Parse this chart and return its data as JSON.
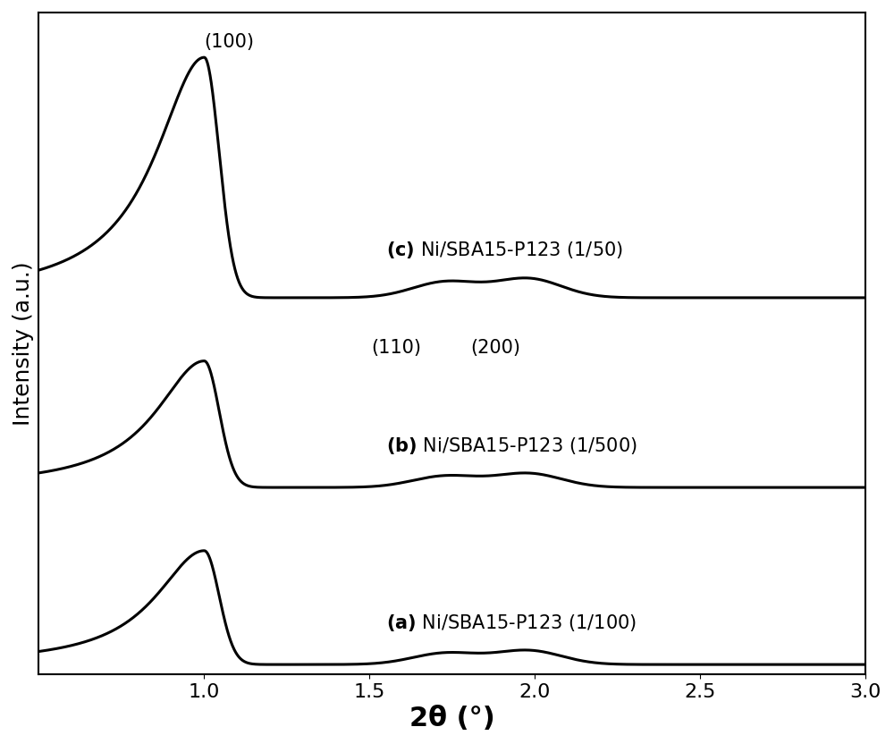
{
  "xlabel": "2θ (°)",
  "ylabel": "Intensity (a.u.)",
  "xlim": [
    0.5,
    3.0
  ],
  "xticks": [
    1.0,
    1.5,
    2.0,
    2.5,
    3.0
  ],
  "background_color": "#ffffff",
  "line_color": "#000000",
  "line_width": 2.2,
  "peak100_label": "(100)",
  "peak110_label": "(110)",
  "peak200_label": "(200)",
  "label_a": "(a) Ni/SBA15-P123 (1/100)",
  "label_b": "(b) Ni/SBA15-P123 (1/500)",
  "label_c": "(c) Ni/SBA15-P123 (1/50)",
  "xlabel_fontsize": 22,
  "ylabel_fontsize": 18,
  "tick_fontsize": 16,
  "annotation_fontsize": 15,
  "label_fontsize": 15
}
